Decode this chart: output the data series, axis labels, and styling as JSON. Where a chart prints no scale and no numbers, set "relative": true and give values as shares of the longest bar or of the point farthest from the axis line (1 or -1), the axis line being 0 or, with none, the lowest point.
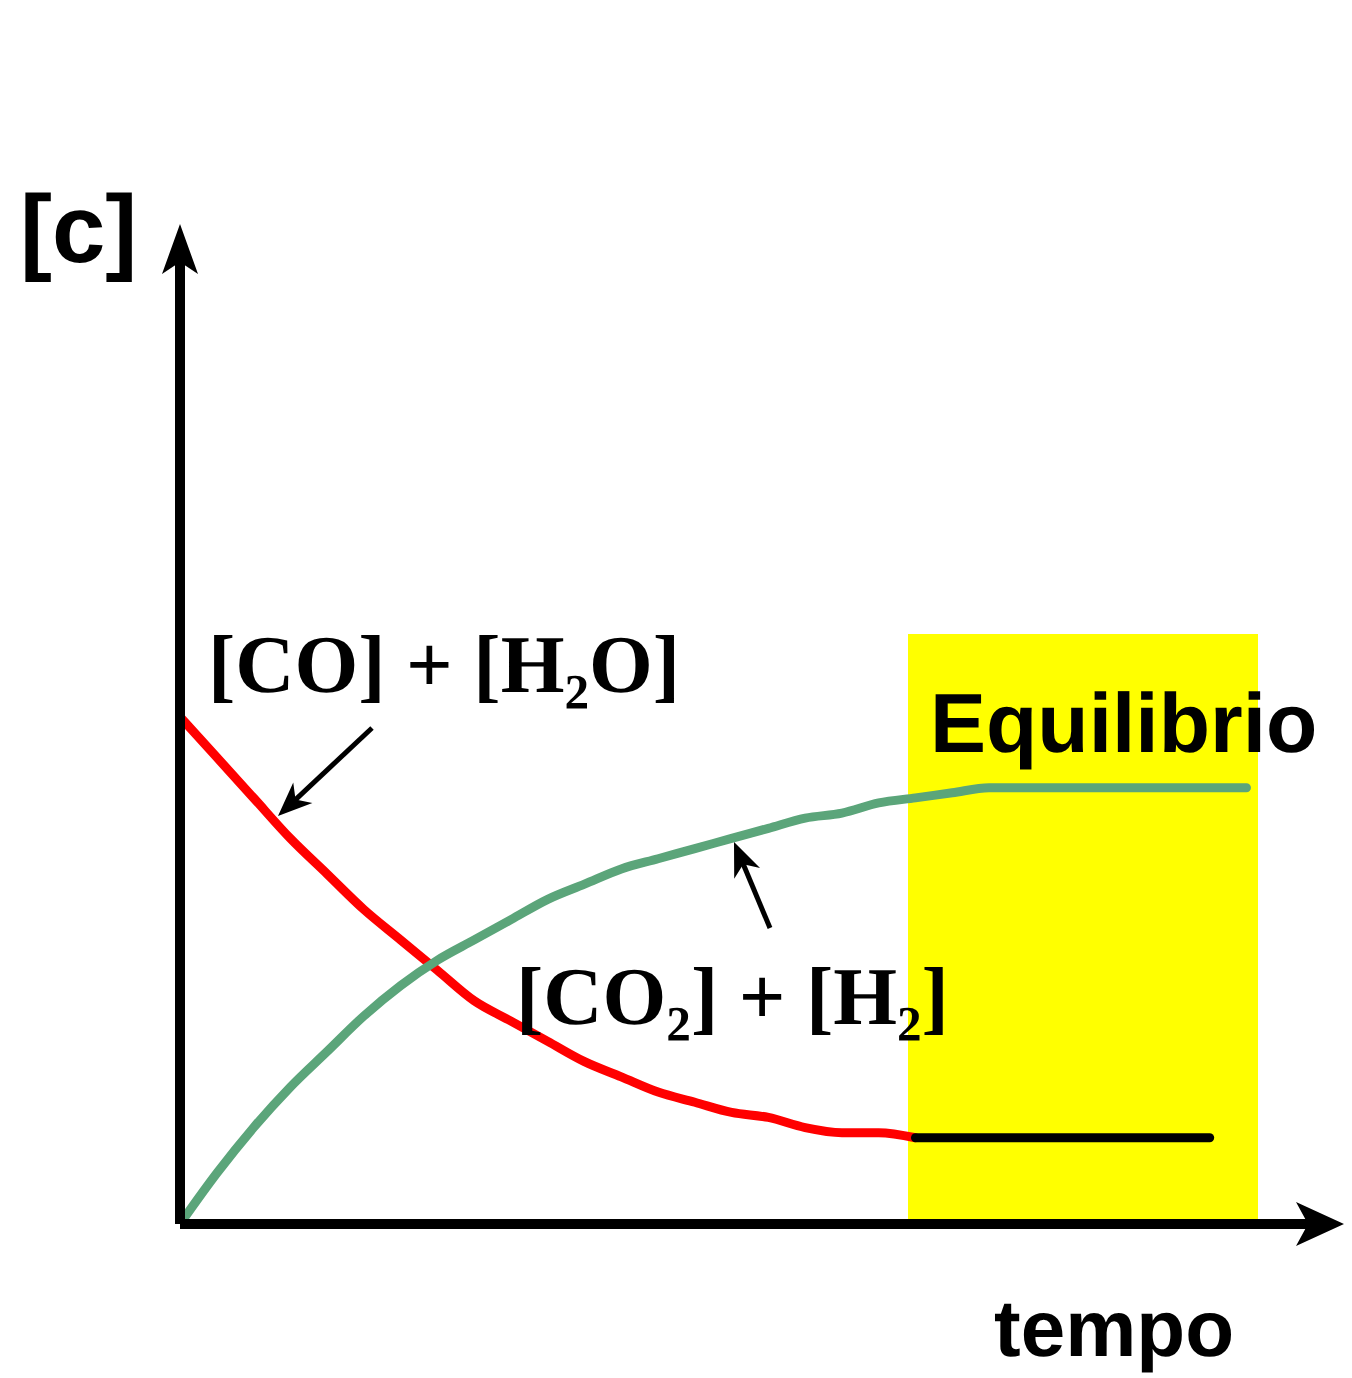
{
  "chart_data": {
    "type": "line",
    "relative": true,
    "xlabel": "tempo",
    "ylabel": "[c]",
    "annotations": [
      "Equilibrio"
    ],
    "categories": [
      null,
      null,
      null,
      null,
      null,
      null,
      null,
      null,
      null,
      null,
      null,
      null,
      null,
      null,
      null,
      null,
      null,
      null,
      null,
      null,
      null,
      null,
      null,
      null,
      null,
      null,
      null,
      null,
      null,
      null
    ],
    "series": [
      {
        "name": "[CO] + [H₂O]",
        "color": "#ff0000",
        "values": [
          1,
          0.92,
          0.84,
          0.76,
          0.69,
          0.62,
          0.56,
          0.5,
          0.44,
          0.4,
          0.36,
          0.32,
          0.29,
          0.26,
          0.24,
          0.22,
          0.21,
          0.19,
          0.18,
          0.18,
          0.17,
          null,
          null,
          null,
          null,
          null,
          null,
          null,
          null,
          null
        ]
      },
      {
        "name": "[CO₂] + [H₂]",
        "color": "#5ba57a",
        "values": [
          0,
          0.1,
          0.19,
          0.27,
          0.34,
          0.41,
          0.47,
          0.52,
          0.56,
          0.6,
          0.64,
          0.67,
          0.7,
          0.72,
          0.74,
          0.76,
          0.78,
          0.8,
          0.81,
          0.83,
          0.84,
          0.85,
          0.86,
          0.86,
          0.86,
          0.86,
          0.86,
          0.86,
          0.86,
          0.86
        ]
      },
      {
        "color": "#000000",
        "values": [
          null,
          null,
          null,
          null,
          null,
          null,
          null,
          null,
          null,
          null,
          null,
          null,
          null,
          null,
          null,
          null,
          null,
          null,
          null,
          null,
          0.17,
          0.17,
          0.17,
          0.17,
          0.17,
          0.17,
          0.17,
          0.17,
          0.17,
          null
        ]
      }
    ],
    "marker": "none"
  }
}
